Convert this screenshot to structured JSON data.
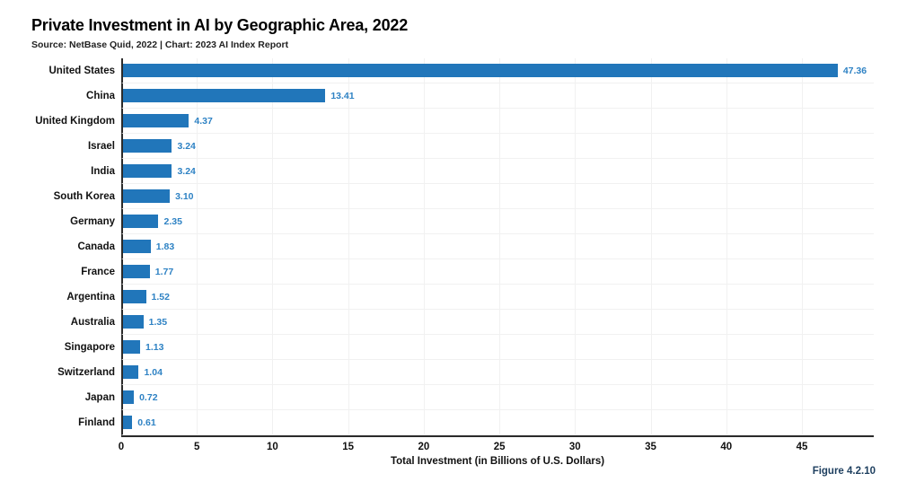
{
  "header": {
    "title": "Private Investment in AI by Geographic Area, 2022",
    "subtitle": "Source: NetBase Quid, 2022 | Chart: 2023 AI Index Report"
  },
  "figure_label": "Figure 4.2.10",
  "colors": {
    "bar": "#2176ba",
    "value_label": "#2e82c4",
    "axis": "#2b2b2b",
    "grid": "#f1f1f1",
    "figure_label": "#1e3f5f"
  },
  "chart_data": {
    "type": "bar",
    "orientation": "horizontal",
    "title": "Private Investment in AI by Geographic Area, 2022",
    "subtitle": "Source: NetBase Quid, 2022 | Chart: 2023 AI Index Report",
    "xlabel": "Total Investment (in Billions of U.S. Dollars)",
    "xlim": [
      0,
      49.75
    ],
    "xticks": [
      0,
      5,
      10,
      15,
      20,
      25,
      30,
      35,
      40,
      45
    ],
    "grid": true,
    "legend": false,
    "categories": [
      "United States",
      "China",
      "United Kingdom",
      "Israel",
      "India",
      "South Korea",
      "Germany",
      "Canada",
      "France",
      "Argentina",
      "Australia",
      "Singapore",
      "Switzerland",
      "Japan",
      "Finland"
    ],
    "values": [
      47.36,
      13.41,
      4.37,
      3.24,
      3.24,
      3.1,
      2.35,
      1.83,
      1.77,
      1.52,
      1.35,
      1.13,
      1.04,
      0.72,
      0.61
    ],
    "value_labels": [
      "47.36",
      "13.41",
      "4.37",
      "3.24",
      "3.24",
      "3.10",
      "2.35",
      "1.83",
      "1.77",
      "1.52",
      "1.35",
      "1.13",
      "1.04",
      "0.72",
      "0.61"
    ]
  }
}
